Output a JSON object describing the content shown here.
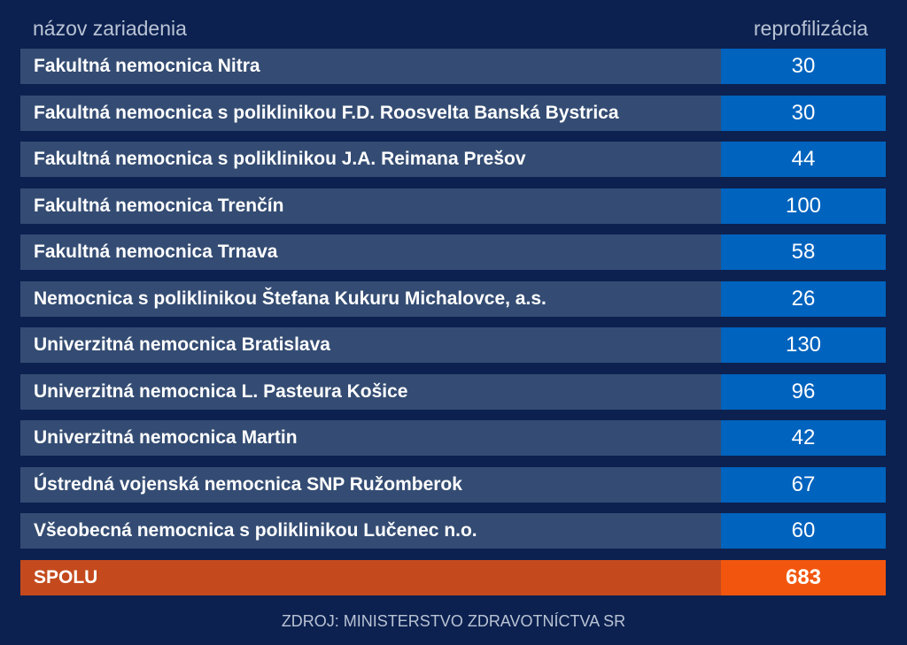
{
  "chart_data": {
    "type": "table",
    "columns": [
      "názov zariadenia",
      "reprofilizácia"
    ],
    "rows": [
      {
        "name": "Fakultná nemocnica Nitra",
        "value": 30
      },
      {
        "name": "Fakultná nemocnica s poliklinikou F.D. Roosvelta Banská Bystrica",
        "value": 30
      },
      {
        "name": "Fakultná nemocnica s poliklinikou J.A. Reimana Prešov",
        "value": 44
      },
      {
        "name": "Fakultná nemocnica Trenčín",
        "value": 100
      },
      {
        "name": "Fakultná nemocnica Trnava",
        "value": 58
      },
      {
        "name": "Nemocnica s poliklinikou Štefana Kukuru Michalovce, a.s.",
        "value": 26
      },
      {
        "name": "Univerzitná nemocnica Bratislava",
        "value": 130
      },
      {
        "name": "Univerzitná nemocnica L. Pasteura Košice",
        "value": 96
      },
      {
        "name": "Univerzitná nemocnica Martin",
        "value": 42
      },
      {
        "name": "Ústredná vojenská nemocnica SNP Ružomberok",
        "value": 67
      },
      {
        "name": "Všeobecná nemocnica s poliklinikou Lučenec n.o.",
        "value": 60
      }
    ],
    "total": {
      "name": "SPOLU",
      "value": 683
    },
    "source": "ZDROJ: MINISTERSTVO ZDRAVOTNÍCTVA SR"
  },
  "colors": {
    "background": "#0c2150",
    "name_cell": "#344c73",
    "value_cell": "#0063be",
    "total_name": "#c44a1e",
    "total_value": "#f2560e"
  }
}
